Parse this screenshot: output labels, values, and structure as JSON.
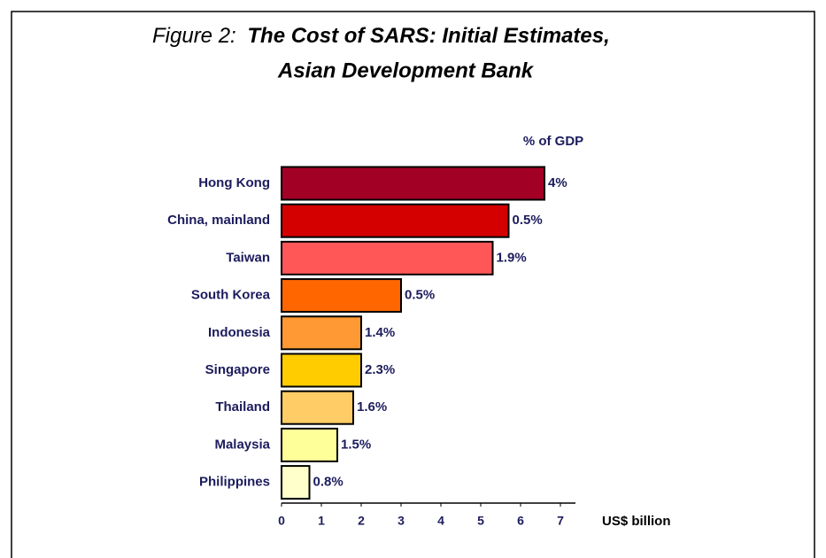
{
  "chart_data": {
    "type": "barh",
    "title_prefix": "Figure 2:",
    "title_lines": [
      "The Cost of SARS: Initial Estimates,",
      "Asian Development Bank"
    ],
    "categories": [
      "Hong Kong",
      "China, mainland",
      "Taiwan",
      "South Korea",
      "Indonesia",
      "Singapore",
      "Thailand",
      "Malaysia",
      "Philippines"
    ],
    "values": [
      6.6,
      5.7,
      5.3,
      3.0,
      2.0,
      2.0,
      1.8,
      1.4,
      0.7
    ],
    "colors": [
      "#a30026",
      "#d40000",
      "#ff5757",
      "#ff6600",
      "#ff9933",
      "#ffcc00",
      "#ffcc66",
      "#ffff99",
      "#ffffcc"
    ],
    "gdp_share_title": "% of GDP",
    "gdp_share_labels": [
      "4%",
      "0.5%",
      "1.9%",
      "0.5%",
      "1.4%",
      "2.3%",
      "1.6%",
      "1.5%",
      "0.8%"
    ],
    "xlabel": "US$ billion",
    "xlim": [
      0,
      7
    ],
    "xticks": [
      0,
      1,
      2,
      3,
      4,
      5,
      6,
      7
    ]
  }
}
